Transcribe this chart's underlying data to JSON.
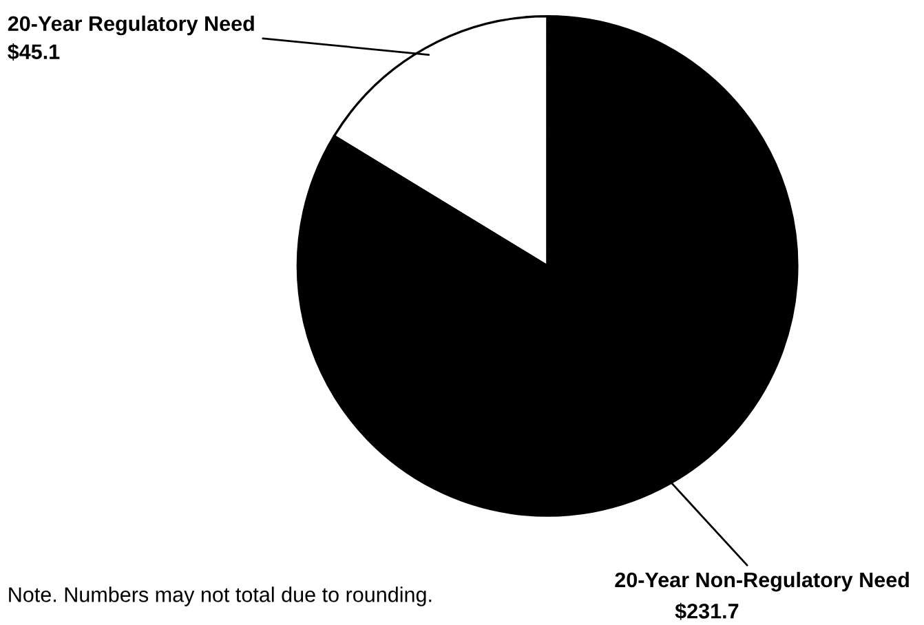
{
  "chart_data": {
    "type": "pie",
    "categories": [
      "20-Year Regulatory Need",
      "20-Year Non-Regulatory Need"
    ],
    "values": [
      45.1,
      231.7
    ],
    "value_labels": [
      "$45.1",
      "$231.7"
    ],
    "colors": [
      "#ffffff",
      "#000000"
    ],
    "annotations": [
      "Note. Numbers may not total due to rounding."
    ]
  }
}
